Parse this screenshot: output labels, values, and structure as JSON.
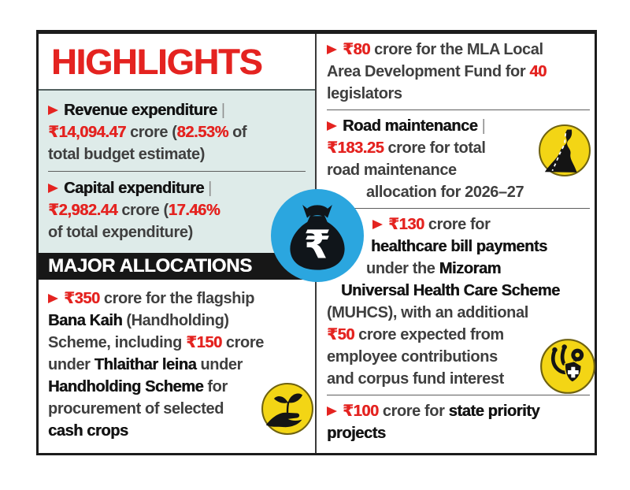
{
  "colors": {
    "red": "#e42320",
    "panel_blue": "#deebe9",
    "bar_black": "#171717",
    "icon_yellow": "#f3d515",
    "circle_blue": "#2ba6df",
    "text": "#3f3f3f",
    "text_bold": "#141414"
  },
  "left": {
    "title": "HIGHLIGHTS",
    "major_allocations_label": "MAJOR ALLOCATIONS",
    "highlights": [
      {
        "name": "revenue-expenditure",
        "segments": [
          {
            "t": "",
            "c": "arrow"
          },
          {
            "t": "Revenue expenditure ",
            "c": "b"
          },
          {
            "t": "|",
            "c": "sep"
          },
          {
            "br": true
          },
          {
            "t": "₹14,094.47",
            "c": "r"
          },
          {
            "t": " crore ("
          },
          {
            "t": "82.53%",
            "c": "r"
          },
          {
            "t": " of"
          },
          {
            "br": true
          },
          {
            "t": "total budget estimate)"
          }
        ]
      },
      {
        "name": "capital-expenditure",
        "segments": [
          {
            "t": "",
            "c": "arrow"
          },
          {
            "t": "Capital expenditure ",
            "c": "b"
          },
          {
            "t": "|",
            "c": "sep"
          },
          {
            "br": true
          },
          {
            "t": "₹2,982.44",
            "c": "r"
          },
          {
            "t": " crore ("
          },
          {
            "t": "17.46%",
            "c": "r"
          },
          {
            "br": true
          },
          {
            "t": "of total expenditure)"
          }
        ]
      }
    ],
    "allocation": {
      "name": "bana-kaih-scheme",
      "segments": [
        {
          "t": "",
          "c": "arrow"
        },
        {
          "t": "₹350",
          "c": "r"
        },
        {
          "t": " crore for the flagship"
        },
        {
          "br": true
        },
        {
          "t": "Bana Kaih",
          "c": "b"
        },
        {
          "t": " (Handholding)"
        },
        {
          "br": true
        },
        {
          "t": "Scheme, including "
        },
        {
          "t": "₹150",
          "c": "r"
        },
        {
          "t": " crore"
        },
        {
          "br": true
        },
        {
          "t": "under "
        },
        {
          "t": "Thlaithar leina",
          "c": "b"
        },
        {
          "t": " under"
        },
        {
          "br": true
        },
        {
          "t": "Handholding Scheme",
          "c": "b"
        },
        {
          "t": " for"
        },
        {
          "br": true
        },
        {
          "t": "procurement of selected"
        },
        {
          "br": true
        },
        {
          "t": "cash crops",
          "c": "b"
        }
      ]
    }
  },
  "right": {
    "items": [
      {
        "name": "mla-local-area-development-fund",
        "segments": [
          {
            "t": "",
            "c": "arrow"
          },
          {
            "t": "₹80",
            "c": "r"
          },
          {
            "t": " crore for the MLA Local"
          },
          {
            "br": true
          },
          {
            "t": "Area Development Fund for "
          },
          {
            "t": "40",
            "c": "r"
          },
          {
            "br": true
          },
          {
            "t": "legislators"
          }
        ]
      },
      {
        "name": "road-maintenance",
        "segments": [
          {
            "t": "",
            "c": "arrow"
          },
          {
            "t": "Road maintenance ",
            "c": "b"
          },
          {
            "t": "|",
            "c": "sep"
          },
          {
            "br": true
          },
          {
            "t": "₹183.25",
            "c": "r"
          },
          {
            "t": " crore for total"
          },
          {
            "br": true
          },
          {
            "t": "road maintenance"
          },
          {
            "br": true
          },
          {
            "t": "allocation for 2026–27",
            "c": "ind50"
          }
        ]
      },
      {
        "name": "healthcare-bill-payments",
        "segments": [
          {
            "t": "",
            "c": "arrow ind60"
          },
          {
            "t": "₹130",
            "c": "r"
          },
          {
            "t": " crore for"
          },
          {
            "br": true
          },
          {
            "t": "healthcare bill payments",
            "c": "b ind56"
          },
          {
            "br": true
          },
          {
            "t": "under the ",
            "c": "ind50"
          },
          {
            "t": "Mizoram",
            "c": "b"
          },
          {
            "br": true
          },
          {
            "t": "Universal Health Care Scheme",
            "c": "b ind18"
          },
          {
            "br": true
          },
          {
            "t": "(MUHCS), with an additional"
          },
          {
            "br": true
          },
          {
            "t": "₹50",
            "c": "r"
          },
          {
            "t": " crore expected from"
          },
          {
            "br": true
          },
          {
            "t": "employee contributions"
          },
          {
            "br": true
          },
          {
            "t": "and corpus fund interest"
          }
        ]
      },
      {
        "name": "state-priority-projects",
        "segments": [
          {
            "t": "",
            "c": "arrow"
          },
          {
            "t": "₹100",
            "c": "r"
          },
          {
            "t": " crore for "
          },
          {
            "t": "state priority",
            "c": "b"
          },
          {
            "br": true
          },
          {
            "t": "projects",
            "c": "b"
          }
        ]
      }
    ]
  },
  "icons": {
    "center": "money-bag-rupee-icon",
    "center_glyph": "₹",
    "allocation": "hand-holding-sprout-icon",
    "road": "winding-road-icon",
    "healthcare": "stethoscope-shield-cross-icon"
  }
}
